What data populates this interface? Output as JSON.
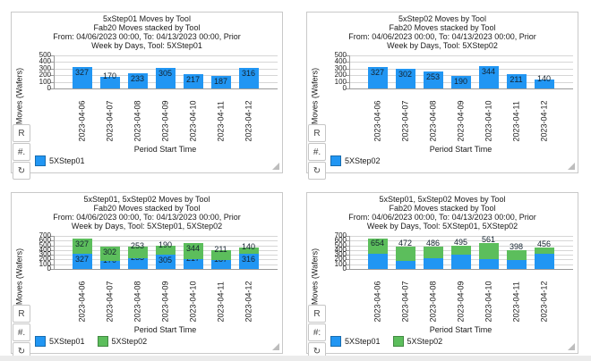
{
  "colors": {
    "series_blue": "#2196F3",
    "series_green": "#5CBE5C",
    "grid": "#d6d6d6",
    "axis": "#9a9a9a",
    "panel_border": "#c9c9c9",
    "text": "#1a1a1a"
  },
  "chart_data": [
    {
      "type": "bar",
      "stacked": false,
      "label_mode": "per-segment",
      "title_lines": [
        "5xStep01 Moves by Tool",
        "Fab20 Moves stacked by Tool",
        "From: 04/06/2023 00:00, To: 04/13/2023 00:00, Prior",
        "Week by Days, Tool: 5XStep01"
      ],
      "xlabel": "Period Start Time",
      "ylabel": "Moves (Wafers)",
      "ylim": [
        0,
        500
      ],
      "y_ticks": [
        0,
        100,
        200,
        300,
        400,
        500
      ],
      "categories": [
        "2023-04-06",
        "2023-04-07",
        "2023-04-08",
        "2023-04-09",
        "2023-04-10",
        "2023-04-11",
        "2023-04-12"
      ],
      "series": [
        {
          "name": "5XStep01",
          "color": "series_blue",
          "values": [
            327,
            170,
            233,
            305,
            217,
            187,
            316
          ]
        }
      ],
      "legend_position": "bottom-left",
      "grid_on": true,
      "side_buttons": [
        {
          "name": "reset-button",
          "label": "R"
        },
        {
          "name": "number-format-button",
          "label": "#."
        },
        {
          "name": "legend-toggle-button",
          "label": "↻",
          "icon": "rotate-arrow-icon"
        }
      ]
    },
    {
      "type": "bar",
      "stacked": false,
      "label_mode": "per-segment",
      "title_lines": [
        "5xStep02 Moves by Tool",
        "Fab20 Moves stacked by Tool",
        "From: 04/06/2023 00:00, To: 04/13/2023 00:00, Prior",
        "Week by Days, Tool: 5XStep02"
      ],
      "xlabel": "Period Start Time",
      "ylabel": "Moves (Wafers)",
      "ylim": [
        0,
        500
      ],
      "y_ticks": [
        0,
        100,
        200,
        300,
        400,
        500
      ],
      "categories": [
        "2023-04-06",
        "2023-04-07",
        "2023-04-08",
        "2023-04-09",
        "2023-04-10",
        "2023-04-11",
        "2023-04-12"
      ],
      "series": [
        {
          "name": "5XStep02",
          "color": "series_blue",
          "values": [
            327,
            302,
            253,
            190,
            344,
            211,
            140
          ]
        }
      ],
      "legend_position": "bottom-left",
      "grid_on": true,
      "side_buttons": [
        {
          "name": "reset-button",
          "label": "R"
        },
        {
          "name": "number-format-button",
          "label": "#."
        },
        {
          "name": "legend-toggle-button",
          "label": "↻",
          "icon": "rotate-arrow-icon"
        }
      ]
    },
    {
      "type": "bar",
      "stacked": true,
      "label_mode": "per-segment",
      "title_lines": [
        "5xStep01, 5xStep02 Moves by Tool",
        "Fab20 Moves stacked by Tool",
        "From: 04/06/2023 00:00, To: 04/13/2023 00:00, Prior",
        "Week by Days, Tool: 5XStep01, 5XStep02"
      ],
      "xlabel": "Period Start Time",
      "ylabel": "Moves (Wafers)",
      "ylim": [
        0,
        700
      ],
      "y_ticks": [
        0,
        100,
        200,
        300,
        400,
        500,
        600,
        700
      ],
      "categories": [
        "2023-04-06",
        "2023-04-07",
        "2023-04-08",
        "2023-04-09",
        "2023-04-10",
        "2023-04-11",
        "2023-04-12"
      ],
      "series": [
        {
          "name": "5XStep01",
          "color": "series_blue",
          "values": [
            327,
            170,
            233,
            305,
            217,
            187,
            316
          ]
        },
        {
          "name": "5XStep02",
          "color": "series_green",
          "values": [
            327,
            302,
            253,
            190,
            344,
            211,
            140
          ]
        }
      ],
      "legend_position": "bottom-left",
      "grid_on": true,
      "side_buttons": [
        {
          "name": "reset-button",
          "label": "R"
        },
        {
          "name": "number-format-button",
          "label": "#."
        },
        {
          "name": "legend-toggle-button",
          "label": "↻",
          "icon": "rotate-arrow-icon"
        }
      ]
    },
    {
      "type": "bar",
      "stacked": true,
      "label_mode": "total",
      "totals": [
        654,
        472,
        486,
        495,
        561,
        398,
        456
      ],
      "title_lines": [
        "5xStep01, 5xStep02 Moves by Tool",
        "Fab20 Moves stacked by Tool",
        "From: 04/06/2023 00:00, To: 04/13/2023 00:00, Prior",
        "Week by Days, Tool: 5XStep01, 5XStep02"
      ],
      "xlabel": "Period Start Time",
      "ylabel": "Moves (Wafers)",
      "ylim": [
        0,
        700
      ],
      "y_ticks": [
        0,
        100,
        200,
        300,
        400,
        500,
        600,
        700
      ],
      "categories": [
        "2023-04-06",
        "2023-04-07",
        "2023-04-08",
        "2023-04-09",
        "2023-04-10",
        "2023-04-11",
        "2023-04-12"
      ],
      "series": [
        {
          "name": "5XStep01",
          "color": "series_blue",
          "values": [
            327,
            170,
            233,
            305,
            217,
            187,
            316
          ]
        },
        {
          "name": "5XStep02",
          "color": "series_green",
          "values": [
            327,
            302,
            253,
            190,
            344,
            211,
            140
          ]
        }
      ],
      "legend_position": "bottom-left",
      "grid_on": true,
      "side_buttons": [
        {
          "name": "reset-button",
          "label": "R"
        },
        {
          "name": "number-format-button",
          "label": "#:"
        },
        {
          "name": "legend-toggle-button",
          "label": "↻",
          "icon": "rotate-arrow-icon"
        }
      ]
    }
  ]
}
